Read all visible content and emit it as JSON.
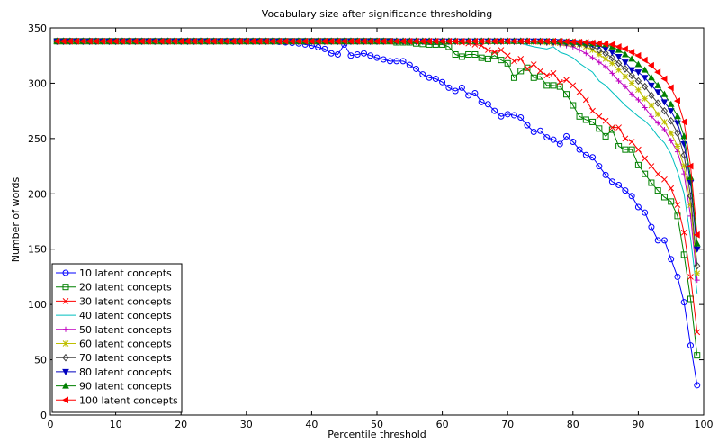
{
  "chart_data": {
    "type": "line",
    "title": "Vocabulary size after significance thresholding",
    "xlabel": "Percentile threshold",
    "ylabel": "Number of words",
    "xlim": [
      0,
      100
    ],
    "ylim": [
      0,
      350
    ],
    "xticks": [
      0,
      10,
      20,
      30,
      40,
      50,
      60,
      70,
      80,
      90,
      100
    ],
    "yticks": [
      0,
      50,
      100,
      150,
      200,
      250,
      300,
      350
    ],
    "grid": false,
    "legend_position": "bottom-left",
    "x_start": 1,
    "x_end": 99,
    "series": [
      {
        "name": "10 latent concepts",
        "color": "#0000ff",
        "marker": "circle",
        "keypoints": [
          [
            1,
            338
          ],
          [
            34,
            338
          ],
          [
            36,
            337
          ],
          [
            38,
            336
          ],
          [
            40,
            334
          ],
          [
            42,
            331
          ],
          [
            43,
            327
          ],
          [
            44,
            326
          ],
          [
            45,
            335
          ],
          [
            46,
            325
          ],
          [
            48,
            327
          ],
          [
            50,
            323
          ],
          [
            52,
            320
          ],
          [
            54,
            320
          ],
          [
            56,
            313
          ],
          [
            57,
            308
          ],
          [
            58,
            305
          ],
          [
            59,
            304
          ],
          [
            60,
            301
          ],
          [
            61,
            296
          ],
          [
            62,
            293
          ],
          [
            63,
            296
          ],
          [
            64,
            289
          ],
          [
            65,
            291
          ],
          [
            66,
            283
          ],
          [
            67,
            281
          ],
          [
            68,
            275
          ],
          [
            69,
            270
          ],
          [
            70,
            272
          ],
          [
            71,
            271
          ],
          [
            72,
            269
          ],
          [
            73,
            262
          ],
          [
            74,
            256
          ],
          [
            75,
            257
          ],
          [
            76,
            251
          ],
          [
            77,
            249
          ],
          [
            78,
            245
          ],
          [
            79,
            252
          ],
          [
            80,
            247
          ],
          [
            81,
            240
          ],
          [
            82,
            235
          ],
          [
            83,
            233
          ],
          [
            84,
            225
          ],
          [
            85,
            217
          ],
          [
            86,
            211
          ],
          [
            87,
            208
          ],
          [
            88,
            203
          ],
          [
            89,
            198
          ],
          [
            90,
            188
          ],
          [
            91,
            183
          ],
          [
            92,
            170
          ],
          [
            93,
            158
          ],
          [
            94,
            158
          ],
          [
            95,
            141
          ],
          [
            96,
            125
          ],
          [
            97,
            102
          ],
          [
            98,
            63
          ],
          [
            99,
            27
          ]
        ]
      },
      {
        "name": "20 latent concepts",
        "color": "#008000",
        "marker": "square",
        "keypoints": [
          [
            1,
            338
          ],
          [
            52,
            338
          ],
          [
            53,
            337
          ],
          [
            55,
            337
          ],
          [
            56,
            336
          ],
          [
            58,
            335
          ],
          [
            60,
            335
          ],
          [
            61,
            333
          ],
          [
            62,
            326
          ],
          [
            63,
            324
          ],
          [
            64,
            326
          ],
          [
            65,
            326
          ],
          [
            66,
            323
          ],
          [
            67,
            322
          ],
          [
            68,
            325
          ],
          [
            69,
            321
          ],
          [
            70,
            318
          ],
          [
            71,
            305
          ],
          [
            72,
            311
          ],
          [
            73,
            314
          ],
          [
            74,
            305
          ],
          [
            75,
            306
          ],
          [
            76,
            298
          ],
          [
            77,
            298
          ],
          [
            78,
            297
          ],
          [
            79,
            290
          ],
          [
            80,
            280
          ],
          [
            81,
            270
          ],
          [
            82,
            267
          ],
          [
            83,
            265
          ],
          [
            84,
            259
          ],
          [
            85,
            252
          ],
          [
            86,
            258
          ],
          [
            87,
            243
          ],
          [
            88,
            240
          ],
          [
            89,
            240
          ],
          [
            90,
            226
          ],
          [
            91,
            218
          ],
          [
            92,
            210
          ],
          [
            93,
            203
          ],
          [
            94,
            197
          ],
          [
            95,
            193
          ],
          [
            96,
            180
          ],
          [
            97,
            145
          ],
          [
            98,
            105
          ],
          [
            99,
            54
          ]
        ]
      },
      {
        "name": "30 latent concepts",
        "color": "#ff0000",
        "marker": "x",
        "keypoints": [
          [
            1,
            338
          ],
          [
            60,
            338
          ],
          [
            63,
            337
          ],
          [
            65,
            335
          ],
          [
            66,
            334
          ],
          [
            67,
            330
          ],
          [
            68,
            328
          ],
          [
            69,
            330
          ],
          [
            70,
            325
          ],
          [
            71,
            320
          ],
          [
            72,
            322
          ],
          [
            73,
            313
          ],
          [
            74,
            317
          ],
          [
            75,
            311
          ],
          [
            76,
            307
          ],
          [
            77,
            309
          ],
          [
            78,
            301
          ],
          [
            79,
            303
          ],
          [
            80,
            298
          ],
          [
            81,
            292
          ],
          [
            82,
            285
          ],
          [
            83,
            275
          ],
          [
            84,
            270
          ],
          [
            85,
            266
          ],
          [
            86,
            260
          ],
          [
            87,
            260
          ],
          [
            88,
            250
          ],
          [
            89,
            247
          ],
          [
            90,
            240
          ],
          [
            91,
            232
          ],
          [
            92,
            225
          ],
          [
            93,
            218
          ],
          [
            94,
            213
          ],
          [
            95,
            205
          ],
          [
            96,
            190
          ],
          [
            97,
            165
          ],
          [
            98,
            125
          ],
          [
            99,
            75
          ]
        ]
      },
      {
        "name": "40 latent concepts",
        "color": "#00bfbf",
        "marker": "none",
        "keypoints": [
          [
            1,
            338
          ],
          [
            66,
            338
          ],
          [
            70,
            337
          ],
          [
            72,
            336
          ],
          [
            74,
            333
          ],
          [
            76,
            331
          ],
          [
            77,
            333
          ],
          [
            78,
            328
          ],
          [
            79,
            326
          ],
          [
            80,
            323
          ],
          [
            81,
            318
          ],
          [
            82,
            314
          ],
          [
            83,
            310
          ],
          [
            84,
            302
          ],
          [
            85,
            298
          ],
          [
            86,
            292
          ],
          [
            87,
            286
          ],
          [
            88,
            280
          ],
          [
            89,
            275
          ],
          [
            90,
            270
          ],
          [
            91,
            266
          ],
          [
            92,
            260
          ],
          [
            93,
            252
          ],
          [
            94,
            246
          ],
          [
            95,
            236
          ],
          [
            96,
            220
          ],
          [
            97,
            200
          ],
          [
            98,
            160
          ],
          [
            99,
            110
          ]
        ]
      },
      {
        "name": "50 latent concepts",
        "color": "#bf00bf",
        "marker": "plus",
        "keypoints": [
          [
            1,
            338
          ],
          [
            70,
            338
          ],
          [
            74,
            337
          ],
          [
            77,
            336
          ],
          [
            79,
            334
          ],
          [
            80,
            333
          ],
          [
            81,
            330
          ],
          [
            82,
            327
          ],
          [
            83,
            323
          ],
          [
            84,
            319
          ],
          [
            85,
            315
          ],
          [
            86,
            309
          ],
          [
            87,
            302
          ],
          [
            88,
            297
          ],
          [
            89,
            290
          ],
          [
            90,
            285
          ],
          [
            91,
            278
          ],
          [
            92,
            270
          ],
          [
            93,
            264
          ],
          [
            94,
            258
          ],
          [
            95,
            248
          ],
          [
            96,
            238
          ],
          [
            97,
            218
          ],
          [
            98,
            180
          ],
          [
            99,
            122
          ]
        ]
      },
      {
        "name": "60 latent concepts",
        "color": "#bfbf00",
        "marker": "star",
        "keypoints": [
          [
            1,
            338
          ],
          [
            72,
            338
          ],
          [
            76,
            337
          ],
          [
            79,
            336
          ],
          [
            81,
            335
          ],
          [
            82,
            333
          ],
          [
            83,
            330
          ],
          [
            84,
            326
          ],
          [
            85,
            322
          ],
          [
            86,
            318
          ],
          [
            87,
            312
          ],
          [
            88,
            306
          ],
          [
            89,
            300
          ],
          [
            90,
            294
          ],
          [
            91,
            286
          ],
          [
            92,
            280
          ],
          [
            93,
            272
          ],
          [
            94,
            265
          ],
          [
            95,
            255
          ],
          [
            96,
            243
          ],
          [
            97,
            225
          ],
          [
            98,
            190
          ],
          [
            99,
            128
          ]
        ]
      },
      {
        "name": "70 latent concepts",
        "color": "#404040",
        "marker": "diamond",
        "keypoints": [
          [
            1,
            338
          ],
          [
            74,
            338
          ],
          [
            78,
            337
          ],
          [
            80,
            336
          ],
          [
            82,
            335
          ],
          [
            83,
            333
          ],
          [
            84,
            330
          ],
          [
            85,
            327
          ],
          [
            86,
            323
          ],
          [
            87,
            318
          ],
          [
            88,
            313
          ],
          [
            89,
            307
          ],
          [
            90,
            302
          ],
          [
            91,
            297
          ],
          [
            92,
            289
          ],
          [
            93,
            282
          ],
          [
            94,
            275
          ],
          [
            95,
            266
          ],
          [
            96,
            255
          ],
          [
            97,
            235
          ],
          [
            98,
            198
          ],
          [
            99,
            135
          ]
        ]
      },
      {
        "name": "80 latent concepts",
        "color": "#0000bf",
        "marker": "triangle-down",
        "keypoints": [
          [
            1,
            338
          ],
          [
            76,
            338
          ],
          [
            80,
            337
          ],
          [
            82,
            336
          ],
          [
            84,
            334
          ],
          [
            85,
            331
          ],
          [
            86,
            328
          ],
          [
            87,
            324
          ],
          [
            88,
            319
          ],
          [
            89,
            312
          ],
          [
            90,
            310
          ],
          [
            91,
            305
          ],
          [
            92,
            298
          ],
          [
            93,
            292
          ],
          [
            94,
            283
          ],
          [
            95,
            275
          ],
          [
            96,
            264
          ],
          [
            97,
            245
          ],
          [
            98,
            210
          ],
          [
            99,
            150
          ]
        ]
      },
      {
        "name": "90 latent concepts",
        "color": "#008000",
        "marker": "triangle-up",
        "keypoints": [
          [
            1,
            338
          ],
          [
            77,
            338
          ],
          [
            81,
            337
          ],
          [
            83,
            336
          ],
          [
            85,
            335
          ],
          [
            86,
            333
          ],
          [
            87,
            330
          ],
          [
            88,
            326
          ],
          [
            89,
            322
          ],
          [
            90,
            317
          ],
          [
            91,
            312
          ],
          [
            92,
            305
          ],
          [
            93,
            298
          ],
          [
            94,
            290
          ],
          [
            95,
            281
          ],
          [
            96,
            270
          ],
          [
            97,
            252
          ],
          [
            98,
            215
          ],
          [
            99,
            155
          ]
        ]
      },
      {
        "name": "100 latent concepts",
        "color": "#ff0000",
        "marker": "triangle-left",
        "keypoints": [
          [
            1,
            338
          ],
          [
            78,
            338
          ],
          [
            82,
            337
          ],
          [
            84,
            336
          ],
          [
            86,
            335
          ],
          [
            87,
            333
          ],
          [
            88,
            331
          ],
          [
            89,
            328
          ],
          [
            90,
            325
          ],
          [
            91,
            321
          ],
          [
            92,
            316
          ],
          [
            93,
            310
          ],
          [
            94,
            304
          ],
          [
            95,
            296
          ],
          [
            96,
            284
          ],
          [
            97,
            265
          ],
          [
            98,
            225
          ],
          [
            99,
            163
          ]
        ]
      }
    ]
  }
}
